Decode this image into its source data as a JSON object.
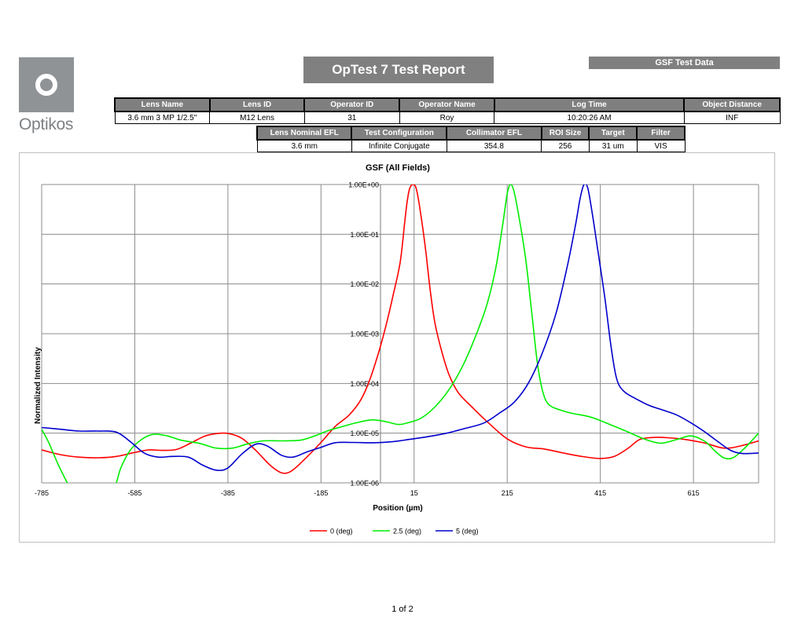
{
  "logo": {
    "text": "Optikos",
    "box_color": "#8f9396"
  },
  "report_title": "OpTest 7 Test Report",
  "gsf_banner": "GSF Test Data",
  "table1": {
    "headers": [
      "Lens Name",
      "Lens ID",
      "Operator ID",
      "Operator Name",
      "Log Time",
      "Object Distance"
    ],
    "values": [
      "3.6 mm 3 MP 1/2.5\"",
      "M12 Lens",
      "31",
      "Roy",
      "10:20:26 AM",
      "INF"
    ]
  },
  "table2": {
    "headers": [
      "Lens Nominal EFL",
      "Test Configuration",
      "Collimator EFL",
      "ROI Size",
      "Target",
      "Filter"
    ],
    "values": [
      "3.6 mm",
      "Infinite Conjugate",
      "354.8",
      "256",
      "31 um",
      "VIS"
    ]
  },
  "chart_data": {
    "type": "line",
    "title": "GSF (All Fields)",
    "xlabel": "Position (µm)",
    "ylabel": "Normalized Intensity",
    "xlim": [
      -785,
      755
    ],
    "x_ticks": [
      -785,
      -585,
      -385,
      -185,
      15,
      215,
      415,
      615
    ],
    "x_tick_labels": [
      "-785",
      "-585",
      "-385",
      "-185",
      "15",
      "215",
      "415",
      "615"
    ],
    "y_scale": "log",
    "ylim": [
      1e-06,
      1
    ],
    "y_ticks": [
      1,
      0.1,
      0.01,
      0.001,
      0.0001,
      1e-05,
      1e-06
    ],
    "y_tick_labels": [
      "1.00E+00",
      "1.00E-01",
      "1.00E-02",
      "1.00E-03",
      "1.00E-04",
      "1.00E-05",
      "1.00E-06"
    ],
    "grid": true,
    "legend_position": "bottom",
    "series": [
      {
        "name": "0 (deg)",
        "color": "#ff0000",
        "points": [
          [
            -785,
            4.6e-06
          ],
          [
            -745,
            3.7e-06
          ],
          [
            -705,
            3.3e-06
          ],
          [
            -665,
            3.2e-06
          ],
          [
            -625,
            3.4e-06
          ],
          [
            -585,
            4.1e-06
          ],
          [
            -555,
            4.6e-06
          ],
          [
            -525,
            4.5e-06
          ],
          [
            -495,
            4.7e-06
          ],
          [
            -465,
            6.3e-06
          ],
          [
            -435,
            8.7e-06
          ],
          [
            -410,
            9.8e-06
          ],
          [
            -385,
            9.9e-06
          ],
          [
            -355,
            7.9e-06
          ],
          [
            -325,
            4.5e-06
          ],
          [
            -295,
            2.3e-06
          ],
          [
            -270,
            1.6e-06
          ],
          [
            -250,
            1.7e-06
          ],
          [
            -225,
            2.7e-06
          ],
          [
            -185,
            6.5e-06
          ],
          [
            -155,
            1.35e-05
          ],
          [
            -125,
            2.3e-05
          ],
          [
            -100,
            4.6e-05
          ],
          [
            -80,
            0.00012
          ],
          [
            -60,
            0.00046
          ],
          [
            -45,
            0.0015
          ],
          [
            -30,
            0.006
          ],
          [
            -15,
            0.027
          ],
          [
            -5,
            0.18
          ],
          [
            0,
            0.45
          ],
          [
            5,
            0.8
          ],
          [
            12,
            1.0
          ],
          [
            20,
            0.8
          ],
          [
            30,
            0.23
          ],
          [
            40,
            0.046
          ],
          [
            50,
            0.007
          ],
          [
            60,
            0.0016
          ],
          [
            75,
            0.00042
          ],
          [
            90,
            0.00015
          ],
          [
            110,
            6.5e-05
          ],
          [
            140,
            3.3e-05
          ],
          [
            175,
            1.6e-05
          ],
          [
            215,
            7.7e-06
          ],
          [
            255,
            5.3e-06
          ],
          [
            295,
            4.8e-06
          ],
          [
            335,
            4e-06
          ],
          [
            375,
            3.4e-06
          ],
          [
            415,
            3.1e-06
          ],
          [
            445,
            3.4e-06
          ],
          [
            475,
            5e-06
          ],
          [
            500,
            7.5e-06
          ],
          [
            530,
            8.2e-06
          ],
          [
            560,
            8.1e-06
          ],
          [
            600,
            7.4e-06
          ],
          [
            640,
            6.3e-06
          ],
          [
            680,
            5e-06
          ],
          [
            715,
            5.5e-06
          ],
          [
            755,
            7e-06
          ]
        ]
      },
      {
        "name": "2.5 (deg)",
        "color": "#00ee00",
        "points": [
          [
            -785,
            1.2e-05
          ],
          [
            -770,
            6.5e-06
          ],
          [
            -750,
            2.4e-06
          ],
          [
            -730,
            1e-06
          ],
          [
            -715,
            5.5e-07
          ],
          [
            -660,
            5.5e-07
          ],
          [
            -630,
            7.8e-07
          ],
          [
            -615,
            2e-06
          ],
          [
            -595,
            4.5e-06
          ],
          [
            -570,
            7.5e-06
          ],
          [
            -545,
            9.5e-06
          ],
          [
            -515,
            8.8e-06
          ],
          [
            -485,
            7.2e-06
          ],
          [
            -445,
            6.2e-06
          ],
          [
            -410,
            5e-06
          ],
          [
            -375,
            5e-06
          ],
          [
            -345,
            6e-06
          ],
          [
            -310,
            7e-06
          ],
          [
            -270,
            7e-06
          ],
          [
            -230,
            7.2e-06
          ],
          [
            -200,
            8.7e-06
          ],
          [
            -170,
            1.12e-05
          ],
          [
            -140,
            1.35e-05
          ],
          [
            -105,
            1.65e-05
          ],
          [
            -75,
            1.85e-05
          ],
          [
            -45,
            1.7e-05
          ],
          [
            -20,
            1.5e-05
          ],
          [
            0,
            1.6e-05
          ],
          [
            30,
            2e-05
          ],
          [
            60,
            3.4e-05
          ],
          [
            90,
            7.5e-05
          ],
          [
            120,
            0.00023
          ],
          [
            145,
            0.0008
          ],
          [
            170,
            0.0035
          ],
          [
            190,
            0.02
          ],
          [
            205,
            0.15
          ],
          [
            215,
            0.65
          ],
          [
            222,
            1.0
          ],
          [
            230,
            0.7
          ],
          [
            242,
            0.18
          ],
          [
            255,
            0.03
          ],
          [
            268,
            0.0025
          ],
          [
            280,
            0.00025
          ],
          [
            292,
            6.5e-05
          ],
          [
            305,
            3.7e-05
          ],
          [
            330,
            2.9e-05
          ],
          [
            355,
            2.5e-05
          ],
          [
            395,
            2.1e-05
          ],
          [
            435,
            1.5e-05
          ],
          [
            475,
            1.05e-05
          ],
          [
            510,
            7.6e-06
          ],
          [
            545,
            6.3e-06
          ],
          [
            580,
            7.5e-06
          ],
          [
            610,
            8.8e-06
          ],
          [
            640,
            6.8e-06
          ],
          [
            660,
            4.5e-06
          ],
          [
            680,
            3.2e-06
          ],
          [
            700,
            3.2e-06
          ],
          [
            725,
            5e-06
          ],
          [
            755,
            1e-05
          ]
        ]
      },
      {
        "name": "5 (deg)",
        "color": "#0000cc",
        "points": [
          [
            -785,
            1.3e-05
          ],
          [
            -745,
            1.2e-05
          ],
          [
            -705,
            1.1e-05
          ],
          [
            -665,
            1.1e-05
          ],
          [
            -625,
            1.05e-05
          ],
          [
            -595,
            6.8e-06
          ],
          [
            -565,
            4e-06
          ],
          [
            -535,
            3.3e-06
          ],
          [
            -505,
            3.4e-06
          ],
          [
            -470,
            3.3e-06
          ],
          [
            -440,
            2.3e-06
          ],
          [
            -410,
            1.8e-06
          ],
          [
            -385,
            2e-06
          ],
          [
            -355,
            3.8e-06
          ],
          [
            -325,
            6e-06
          ],
          [
            -300,
            5.5e-06
          ],
          [
            -270,
            3.6e-06
          ],
          [
            -245,
            3.3e-06
          ],
          [
            -215,
            4.2e-06
          ],
          [
            -185,
            5.2e-06
          ],
          [
            -155,
            6.4e-06
          ],
          [
            -115,
            6.5e-06
          ],
          [
            -75,
            6.4e-06
          ],
          [
            -35,
            6.7e-06
          ],
          [
            5,
            7.5e-06
          ],
          [
            45,
            8.5e-06
          ],
          [
            85,
            1e-05
          ],
          [
            125,
            1.25e-05
          ],
          [
            165,
            1.6e-05
          ],
          [
            200,
            2.6e-05
          ],
          [
            230,
            4.2e-05
          ],
          [
            260,
            0.0001
          ],
          [
            290,
            0.0004
          ],
          [
            320,
            0.0026
          ],
          [
            345,
            0.025
          ],
          [
            362,
            0.16
          ],
          [
            372,
            0.55
          ],
          [
            380,
            1.0
          ],
          [
            388,
            0.85
          ],
          [
            398,
            0.25
          ],
          [
            410,
            0.045
          ],
          [
            425,
            0.005
          ],
          [
            438,
            0.00055
          ],
          [
            450,
            0.000125
          ],
          [
            465,
            7e-05
          ],
          [
            490,
            5e-05
          ],
          [
            520,
            3.6e-05
          ],
          [
            550,
            2.9e-05
          ],
          [
            580,
            2.3e-05
          ],
          [
            610,
            1.6e-05
          ],
          [
            640,
            1.05e-05
          ],
          [
            670,
            6.5e-06
          ],
          [
            695,
            4.5e-06
          ],
          [
            720,
            3.9e-06
          ],
          [
            755,
            4e-06
          ]
        ]
      }
    ]
  },
  "page_number": "1 of 2"
}
